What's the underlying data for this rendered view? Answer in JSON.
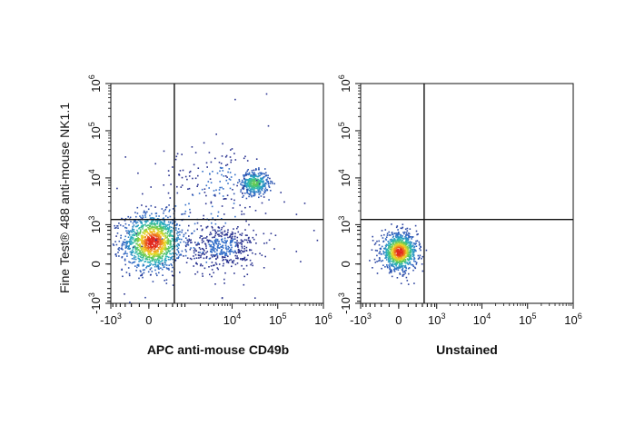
{
  "figure": {
    "y_axis_title": "Fine Test® 488 anti-mouse NK1.1"
  },
  "chart_data": [
    {
      "type": "scatter",
      "panel": "left",
      "title": "",
      "xlabel": "APC anti-mouse CD49b",
      "ylabel": "Fine Test® 488 anti-mouse NK1.1",
      "scale": "biexponential",
      "xlim": [
        -1000,
        1000000
      ],
      "ylim": [
        -1000,
        1000000
      ],
      "x_ticks": [
        {
          "base": "-10",
          "exp": "3",
          "value": -1000
        },
        {
          "base": "0",
          "exp": "",
          "value": 0
        },
        {
          "base": "10",
          "exp": "4",
          "value": 10000
        },
        {
          "base": "10",
          "exp": "5",
          "value": 100000
        },
        {
          "base": "10",
          "exp": "6",
          "value": 1000000
        }
      ],
      "y_ticks": [
        {
          "base": "-10",
          "exp": "3",
          "value": -1000
        },
        {
          "base": "0",
          "exp": "",
          "value": 0
        },
        {
          "base": "10",
          "exp": "3",
          "value": 1000
        },
        {
          "base": "10",
          "exp": "4",
          "value": 10000
        },
        {
          "base": "10",
          "exp": "5",
          "value": 100000
        },
        {
          "base": "10",
          "exp": "6",
          "value": 1000000
        }
      ],
      "gate": {
        "x": 500,
        "y": 1300
      },
      "populations": [
        {
          "name": "",
          "x": 50,
          "y": 400,
          "count": 1300,
          "spread_x": 0.75,
          "spread_y": 0.7,
          "color": "#e8a020"
        },
        {
          "name": "",
          "x": 30000,
          "y": 8000,
          "count": 420,
          "spread_x": 0.35,
          "spread_y": 0.28,
          "color": "#2a86c8"
        },
        {
          "name": "",
          "x": 6000,
          "y": 300,
          "count": 420,
          "spread_x": 0.85,
          "spread_y": 0.55,
          "color": "#2b2f8a"
        },
        {
          "name": "",
          "x": 5000,
          "y": 10000,
          "count": 110,
          "spread_x": 1.2,
          "spread_y": 0.8,
          "color": "#2b2f8a"
        },
        {
          "name": "",
          "x": 2000,
          "y": 1000,
          "count": 160,
          "spread_x": 2.5,
          "spread_y": 2.2,
          "color": "#2b2f8a"
        }
      ],
      "grid": false,
      "legend": "none"
    },
    {
      "type": "scatter",
      "panel": "right",
      "title": "",
      "xlabel": "Unstained",
      "ylabel": "",
      "scale": "biexponential",
      "xlim": [
        -1000,
        1000000
      ],
      "ylim": [
        -1000,
        1000000
      ],
      "x_ticks": [
        {
          "base": "-10",
          "exp": "3",
          "value": -1000
        },
        {
          "base": "0",
          "exp": "",
          "value": 0
        },
        {
          "base": "10",
          "exp": "3",
          "value": 1000
        },
        {
          "base": "10",
          "exp": "4",
          "value": 10000
        },
        {
          "base": "10",
          "exp": "5",
          "value": 100000
        },
        {
          "base": "10",
          "exp": "6",
          "value": 1000000
        }
      ],
      "y_ticks": [
        {
          "base": "-10",
          "exp": "3",
          "value": -1000
        },
        {
          "base": "0",
          "exp": "",
          "value": 0
        },
        {
          "base": "10",
          "exp": "3",
          "value": 1000
        },
        {
          "base": "10",
          "exp": "4",
          "value": 10000
        },
        {
          "base": "10",
          "exp": "5",
          "value": 100000
        },
        {
          "base": "10",
          "exp": "6",
          "value": 1000000
        }
      ],
      "gate": {
        "x": 500,
        "y": 1300
      },
      "populations": [
        {
          "name": "",
          "x": 0,
          "y": 200,
          "count": 950,
          "spread_x": 0.45,
          "spread_y": 0.45,
          "color": "#e8a020"
        }
      ],
      "grid": false,
      "legend": "none"
    }
  ]
}
